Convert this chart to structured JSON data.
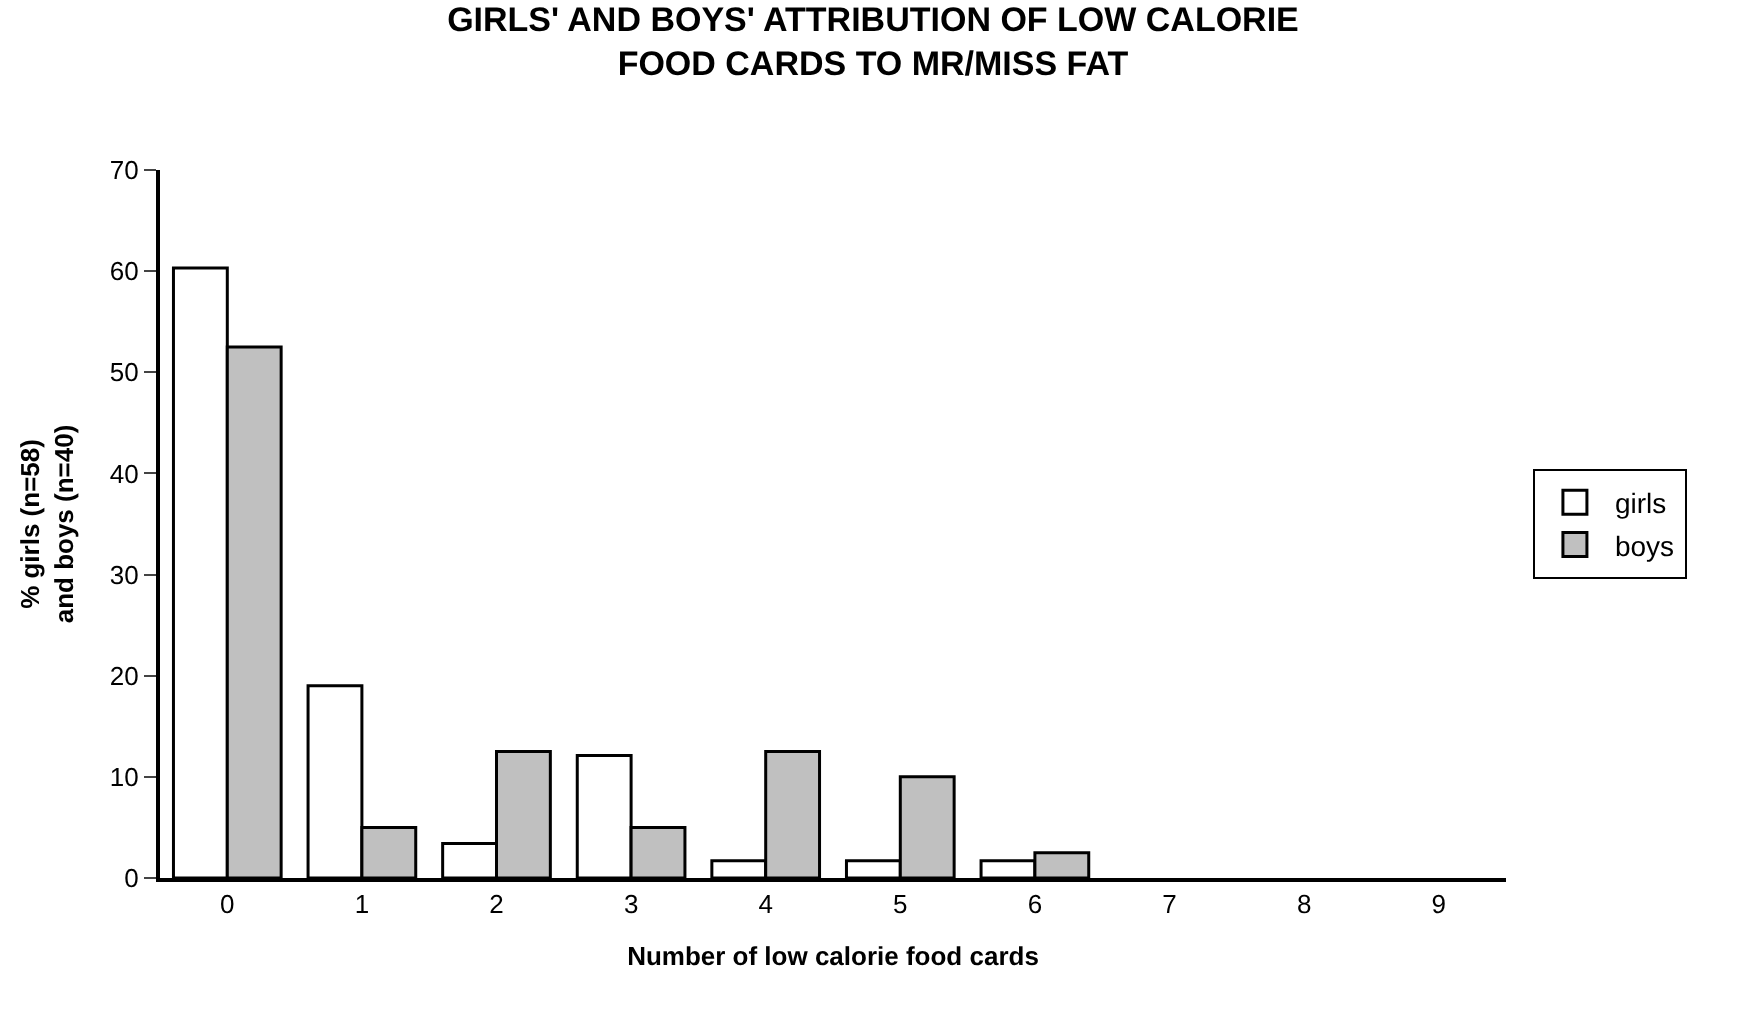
{
  "chart_data": {
    "type": "bar",
    "title": "GIRLS' AND BOYS' ATTRIBUTION OF LOW CALORIE\nFOOD CARDS TO MR/MISS FAT",
    "xlabel": "Number of low calorie food cards",
    "ylabel": "% girls (n=58)\nand boys (n=40)",
    "categories": [
      "0",
      "1",
      "2",
      "3",
      "4",
      "5",
      "6",
      "7",
      "8",
      "9"
    ],
    "series": [
      {
        "name": "girls",
        "color": "#ffffff",
        "values": [
          60.3,
          19.0,
          3.4,
          12.1,
          1.7,
          1.7,
          1.7,
          0,
          0,
          0
        ]
      },
      {
        "name": "boys",
        "color": "#c0c0c0",
        "values": [
          52.5,
          5.0,
          12.5,
          5.0,
          12.5,
          10.0,
          2.5,
          0,
          0,
          0
        ]
      }
    ],
    "ylim": [
      0,
      70
    ],
    "yticks": [
      0,
      10,
      20,
      30,
      40,
      50,
      60,
      70
    ],
    "legend": "right"
  }
}
